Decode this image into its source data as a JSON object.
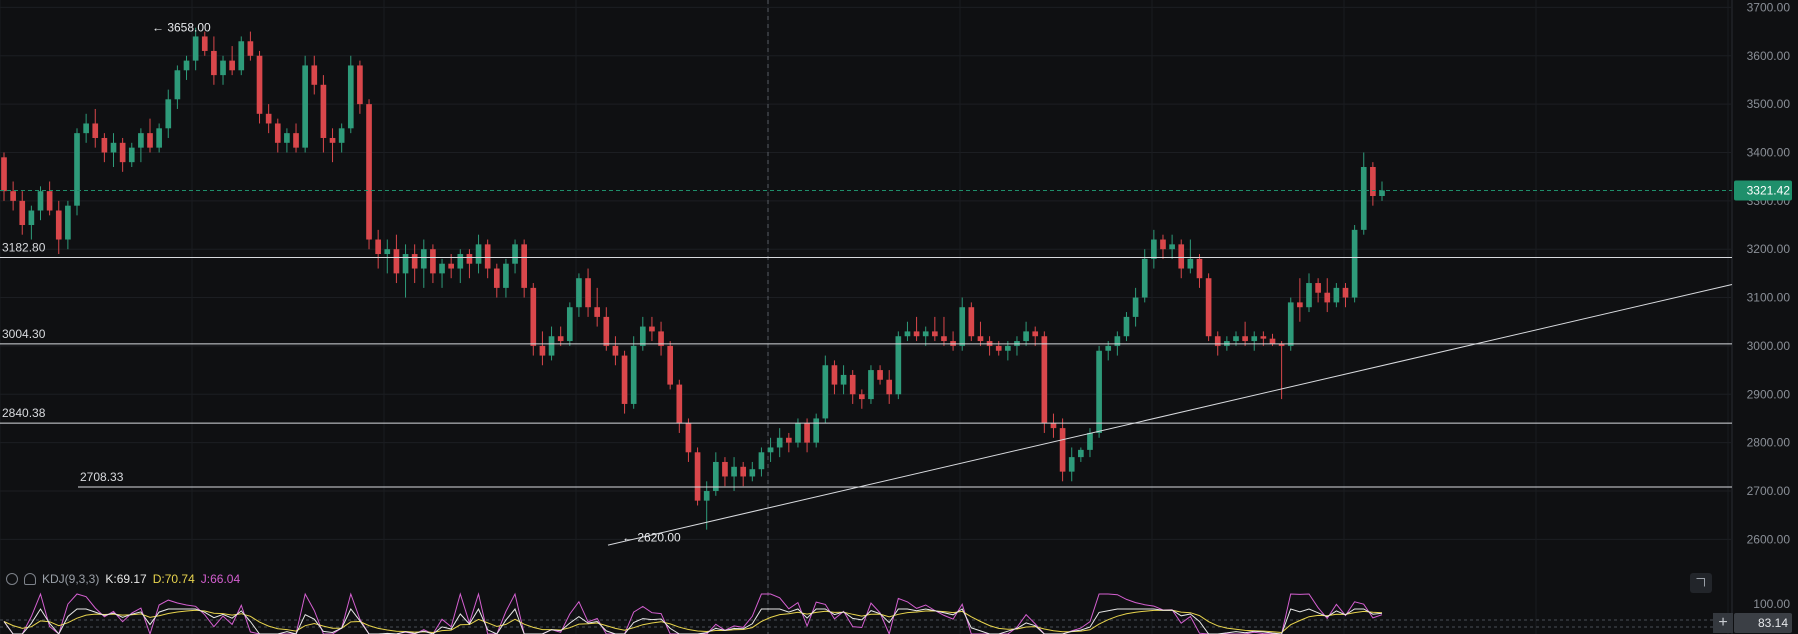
{
  "chart_data": {
    "type": "candlestick",
    "y_axis": {
      "ticks": [
        3700,
        3600,
        3500,
        3400,
        3300,
        3200,
        3100,
        3000,
        2900,
        2800,
        2700,
        2600
      ],
      "range": [
        2580,
        3705
      ]
    },
    "current_price": "3321.42",
    "horizontal_levels": [
      {
        "value": 3182.8,
        "label": "3182.80"
      },
      {
        "value": 3004.3,
        "label": "3004.30"
      },
      {
        "value": 2840.38,
        "label": "2840.38"
      },
      {
        "value": 2708.33,
        "label": "2708.33"
      }
    ],
    "annotations": [
      {
        "text": "← 3658.00",
        "value": 3658.0
      },
      {
        "text": "← 2620.00",
        "value": 2620.0
      }
    ],
    "trendline": {
      "from": [
        0,
        2588
      ],
      "to": [
        1,
        3127
      ]
    },
    "candles": [
      [
        3390,
        3400,
        3300,
        3320
      ],
      [
        3320,
        3340,
        3280,
        3300
      ],
      [
        3300,
        3320,
        3230,
        3250
      ],
      [
        3250,
        3290,
        3220,
        3280
      ],
      [
        3280,
        3330,
        3260,
        3320
      ],
      [
        3320,
        3340,
        3270,
        3280
      ],
      [
        3280,
        3300,
        3190,
        3220
      ],
      [
        3220,
        3300,
        3200,
        3290
      ],
      [
        3290,
        3450,
        3270,
        3440
      ],
      [
        3440,
        3480,
        3420,
        3460
      ],
      [
        3460,
        3490,
        3410,
        3430
      ],
      [
        3430,
        3440,
        3380,
        3400
      ],
      [
        3400,
        3440,
        3370,
        3420
      ],
      [
        3420,
        3430,
        3360,
        3380
      ],
      [
        3380,
        3420,
        3370,
        3410
      ],
      [
        3410,
        3450,
        3380,
        3440
      ],
      [
        3440,
        3470,
        3400,
        3410
      ],
      [
        3410,
        3460,
        3400,
        3450
      ],
      [
        3450,
        3530,
        3430,
        3510
      ],
      [
        3510,
        3580,
        3490,
        3570
      ],
      [
        3570,
        3600,
        3550,
        3590
      ],
      [
        3590,
        3658,
        3570,
        3640
      ],
      [
        3640,
        3650,
        3600,
        3610
      ],
      [
        3610,
        3640,
        3540,
        3560
      ],
      [
        3560,
        3600,
        3540,
        3590
      ],
      [
        3590,
        3620,
        3560,
        3570
      ],
      [
        3570,
        3640,
        3560,
        3630
      ],
      [
        3630,
        3650,
        3590,
        3600
      ],
      [
        3600,
        3610,
        3460,
        3480
      ],
      [
        3480,
        3500,
        3440,
        3460
      ],
      [
        3460,
        3470,
        3400,
        3420
      ],
      [
        3420,
        3450,
        3400,
        3440
      ],
      [
        3440,
        3460,
        3400,
        3410
      ],
      [
        3410,
        3600,
        3400,
        3580
      ],
      [
        3580,
        3600,
        3520,
        3540
      ],
      [
        3540,
        3560,
        3400,
        3430
      ],
      [
        3430,
        3450,
        3380,
        3420
      ],
      [
        3420,
        3460,
        3400,
        3450
      ],
      [
        3450,
        3600,
        3440,
        3580
      ],
      [
        3580,
        3590,
        3480,
        3500
      ],
      [
        3500,
        3510,
        3200,
        3220
      ],
      [
        3220,
        3240,
        3160,
        3190
      ],
      [
        3190,
        3220,
        3150,
        3200
      ],
      [
        3200,
        3230,
        3130,
        3150
      ],
      [
        3150,
        3210,
        3100,
        3190
      ],
      [
        3190,
        3210,
        3130,
        3160
      ],
      [
        3160,
        3220,
        3120,
        3200
      ],
      [
        3200,
        3210,
        3130,
        3150
      ],
      [
        3150,
        3180,
        3120,
        3170
      ],
      [
        3170,
        3190,
        3140,
        3160
      ],
      [
        3160,
        3200,
        3130,
        3190
      ],
      [
        3190,
        3200,
        3140,
        3170
      ],
      [
        3170,
        3230,
        3150,
        3210
      ],
      [
        3210,
        3220,
        3140,
        3160
      ],
      [
        3160,
        3170,
        3100,
        3120
      ],
      [
        3120,
        3180,
        3100,
        3170
      ],
      [
        3170,
        3220,
        3150,
        3210
      ],
      [
        3210,
        3220,
        3100,
        3120
      ],
      [
        3120,
        3130,
        2980,
        3000
      ],
      [
        3000,
        3030,
        2960,
        2980
      ],
      [
        2980,
        3040,
        2970,
        3020
      ],
      [
        3020,
        3040,
        3000,
        3010
      ],
      [
        3010,
        3090,
        3000,
        3080
      ],
      [
        3080,
        3150,
        3060,
        3140
      ],
      [
        3140,
        3160,
        3060,
        3080
      ],
      [
        3080,
        3120,
        3040,
        3060
      ],
      [
        3060,
        3080,
        2990,
        3000
      ],
      [
        3000,
        3020,
        2960,
        2980
      ],
      [
        2980,
        2990,
        2860,
        2880
      ],
      [
        2880,
        3020,
        2870,
        3000
      ],
      [
        3000,
        3060,
        2990,
        3040
      ],
      [
        3040,
        3060,
        3010,
        3030
      ],
      [
        3030,
        3050,
        2980,
        3000
      ],
      [
        3000,
        3010,
        2910,
        2920
      ],
      [
        2920,
        2930,
        2820,
        2840
      ],
      [
        2840,
        2850,
        2760,
        2780
      ],
      [
        2780,
        2790,
        2670,
        2680
      ],
      [
        2680,
        2720,
        2620,
        2700
      ],
      [
        2700,
        2780,
        2690,
        2760
      ],
      [
        2760,
        2770,
        2710,
        2730
      ],
      [
        2730,
        2770,
        2700,
        2750
      ],
      [
        2750,
        2760,
        2710,
        2730
      ],
      [
        2730,
        2760,
        2720,
        2745
      ],
      [
        2745,
        2790,
        2730,
        2780
      ],
      [
        2780,
        2810,
        2760,
        2790
      ],
      [
        2790,
        2830,
        2770,
        2810
      ],
      [
        2810,
        2820,
        2780,
        2800
      ],
      [
        2800,
        2850,
        2790,
        2840
      ],
      [
        2840,
        2850,
        2780,
        2800
      ],
      [
        2800,
        2860,
        2790,
        2850
      ],
      [
        2850,
        2980,
        2840,
        2960
      ],
      [
        2960,
        2970,
        2900,
        2920
      ],
      [
        2920,
        2960,
        2900,
        2940
      ],
      [
        2940,
        2950,
        2880,
        2900
      ],
      [
        2900,
        2910,
        2870,
        2890
      ],
      [
        2890,
        2960,
        2880,
        2950
      ],
      [
        2950,
        2960,
        2920,
        2930
      ],
      [
        2930,
        2950,
        2880,
        2900
      ],
      [
        2900,
        3030,
        2890,
        3020
      ],
      [
        3020,
        3050,
        3010,
        3030
      ],
      [
        3030,
        3060,
        3010,
        3020
      ],
      [
        3020,
        3040,
        3000,
        3030
      ],
      [
        3030,
        3060,
        3010,
        3020
      ],
      [
        3020,
        3060,
        3000,
        3010
      ],
      [
        3010,
        3030,
        2990,
        3000
      ],
      [
        3000,
        3100,
        2990,
        3080
      ],
      [
        3080,
        3090,
        3010,
        3020
      ],
      [
        3020,
        3050,
        3000,
        3010
      ],
      [
        3010,
        3020,
        2980,
        3000
      ],
      [
        3000,
        3010,
        2980,
        2990
      ],
      [
        2990,
        3010,
        2970,
        3000
      ],
      [
        3000,
        3020,
        2980,
        3010
      ],
      [
        3010,
        3050,
        3000,
        3030
      ],
      [
        3030,
        3040,
        3000,
        3020
      ],
      [
        3020,
        3030,
        2820,
        2840
      ],
      [
        2840,
        2860,
        2810,
        2830
      ],
      [
        2830,
        2850,
        2720,
        2740
      ],
      [
        2740,
        2790,
        2720,
        2770
      ],
      [
        2770,
        2790,
        2760,
        2785
      ],
      [
        2785,
        2830,
        2770,
        2820
      ],
      [
        2820,
        3000,
        2810,
        2990
      ],
      [
        2990,
        3010,
        2970,
        3000
      ],
      [
        3000,
        3030,
        2980,
        3020
      ],
      [
        3020,
        3070,
        3010,
        3060
      ],
      [
        3060,
        3120,
        3040,
        3100
      ],
      [
        3100,
        3200,
        3090,
        3180
      ],
      [
        3180,
        3240,
        3160,
        3220
      ],
      [
        3220,
        3230,
        3180,
        3200
      ],
      [
        3200,
        3230,
        3180,
        3210
      ],
      [
        3210,
        3220,
        3140,
        3160
      ],
      [
        3160,
        3220,
        3150,
        3180
      ],
      [
        3180,
        3190,
        3120,
        3140
      ],
      [
        3140,
        3150,
        3010,
        3020
      ],
      [
        3020,
        3030,
        2980,
        3000
      ],
      [
        3000,
        3020,
        2990,
        3010
      ],
      [
        3010,
        3030,
        3000,
        3020
      ],
      [
        3020,
        3050,
        3000,
        3010
      ],
      [
        3010,
        3030,
        2990,
        3020
      ],
      [
        3020,
        3030,
        3000,
        3015
      ],
      [
        3015,
        3025,
        3000,
        3005
      ],
      [
        3005,
        3010,
        2890,
        3000
      ],
      [
        3000,
        3100,
        2990,
        3090
      ],
      [
        3090,
        3140,
        3050,
        3080
      ],
      [
        3080,
        3150,
        3070,
        3130
      ],
      [
        3130,
        3140,
        3090,
        3110
      ],
      [
        3110,
        3140,
        3070,
        3090
      ],
      [
        3090,
        3130,
        3080,
        3120
      ],
      [
        3120,
        3130,
        3080,
        3100
      ],
      [
        3100,
        3250,
        3090,
        3240
      ],
      [
        3240,
        3400,
        3230,
        3370
      ],
      [
        3370,
        3380,
        3290,
        3310
      ],
      [
        3310,
        3340,
        3300,
        3321.42
      ]
    ]
  },
  "indicator": {
    "eye_icon": "eye-icon",
    "bell_icon": "bell-icon",
    "name": "KDJ(9,3,3)",
    "k": "K:69.17",
    "d": "D:70.74",
    "j": "J:66.04",
    "axis_label": "100.00",
    "value_badge": "83.14",
    "colors": {
      "k": "#e8e8e8",
      "d": "#e8d44d",
      "j": "#d45fd0"
    }
  },
  "colors": {
    "up": "#2e9b7a",
    "down": "#d9474b",
    "badge": "#1f8f6b",
    "background": "#0f1012"
  },
  "controls": {
    "plus_label": "+"
  }
}
